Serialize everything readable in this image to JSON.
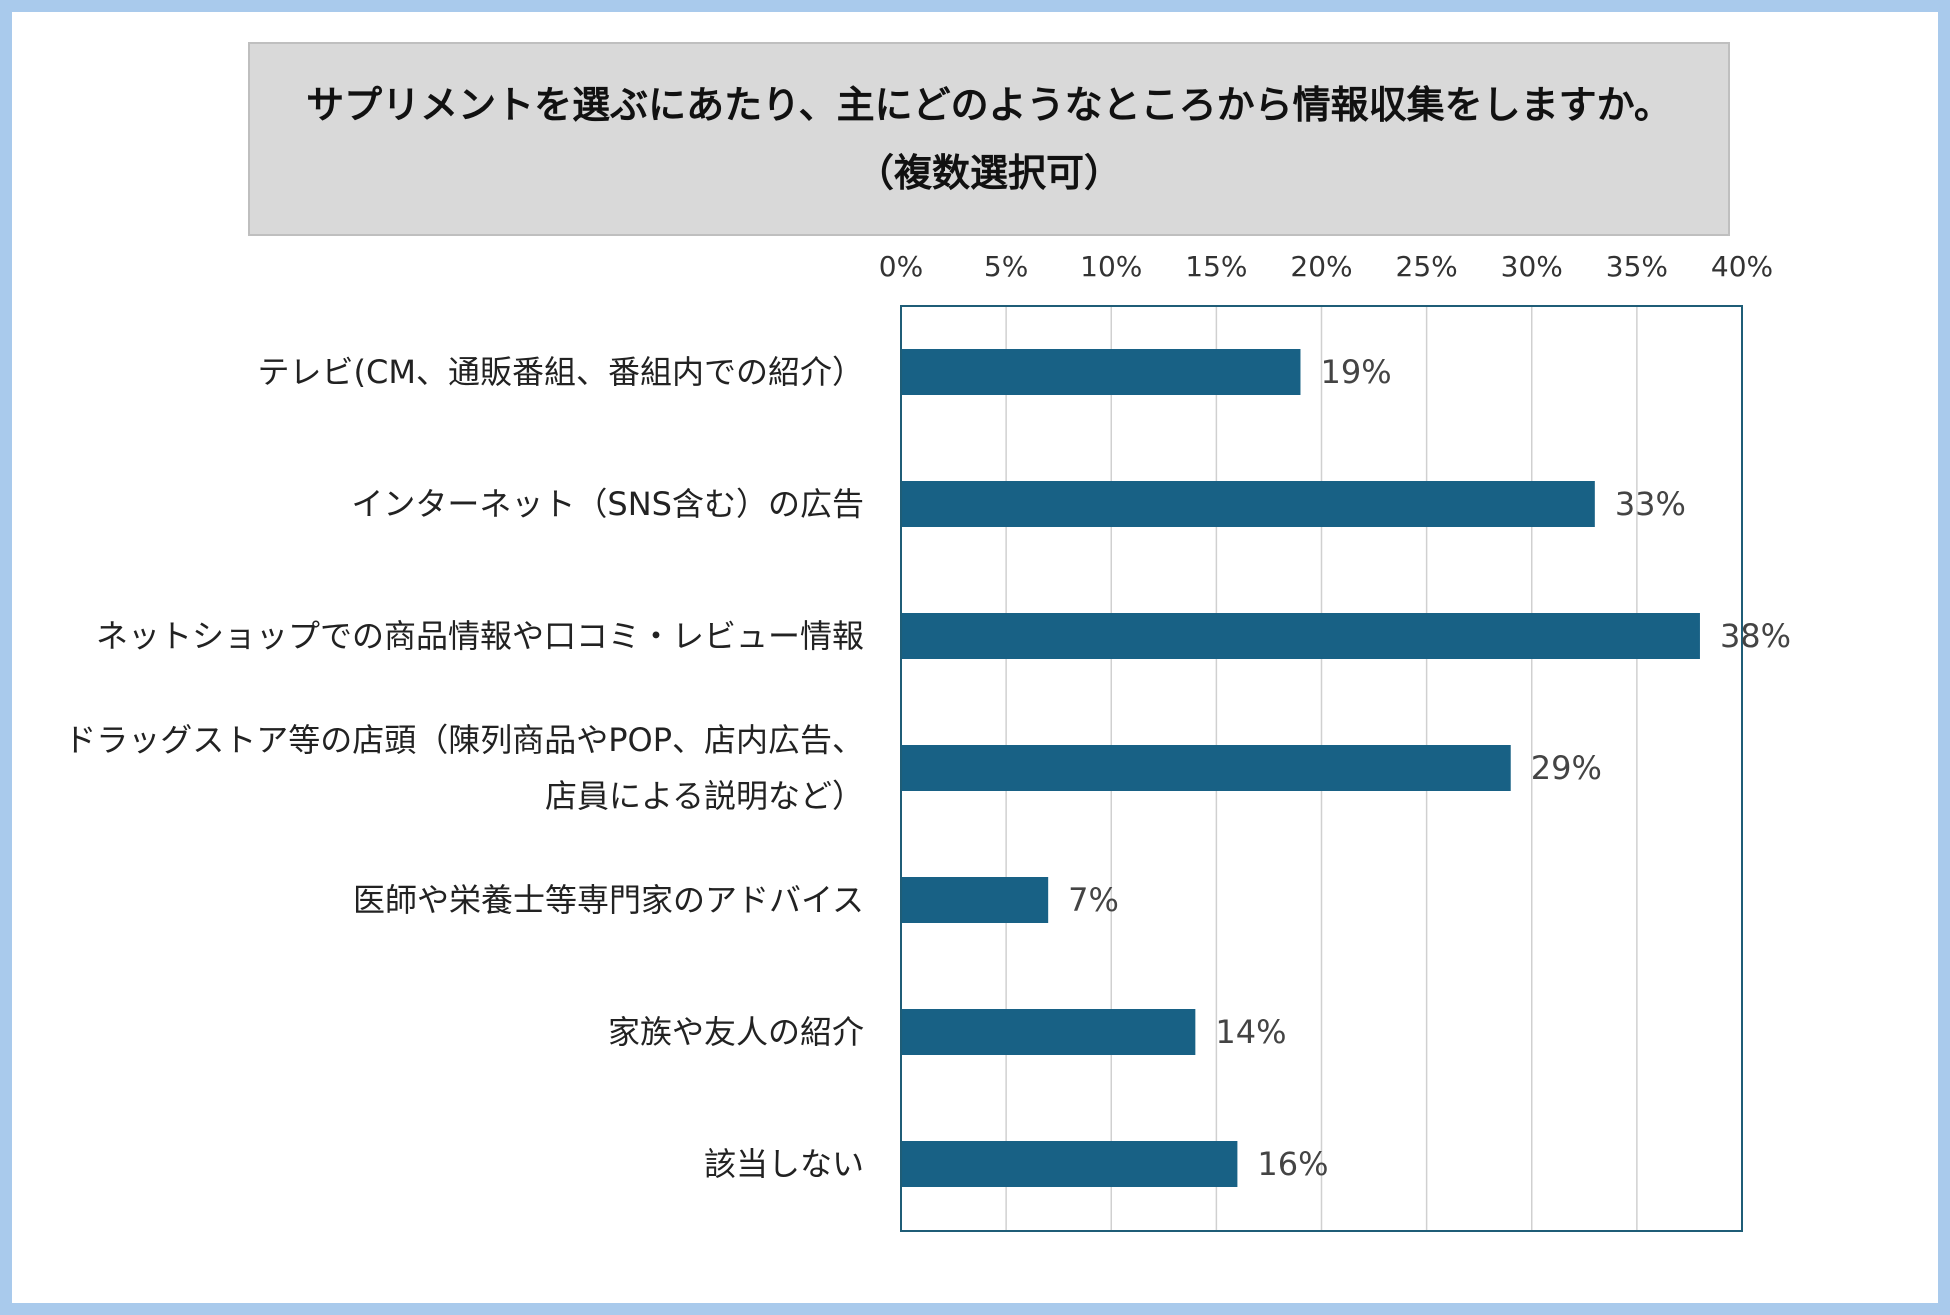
{
  "chart_data": {
    "type": "bar",
    "orientation": "horizontal",
    "title": "サプリメントを選ぶにあたり、主にどのようなところから情報収集をしますか。",
    "subtitle": "（複数選択可）",
    "categories": [
      [
        "テレビ(CM、通販番組、番組内での紹介）"
      ],
      [
        "インターネット（SNS含む）の広告"
      ],
      [
        "ネットショップでの商品情報や口コミ・レビュー情報"
      ],
      [
        "ドラッグストア等の店頭（陳列商品やPOP、店内広告、",
        "店員による説明など）"
      ],
      [
        "医師や栄養士等専門家のアドバイス"
      ],
      [
        "家族や友人の紹介"
      ],
      [
        "該当しない"
      ]
    ],
    "values": [
      19,
      33,
      38,
      29,
      7,
      14,
      16
    ],
    "data_labels": [
      "19%",
      "33%",
      "38%",
      "29%",
      "7%",
      "14%",
      "16%"
    ],
    "xlim": [
      0,
      40
    ],
    "xticks": [
      0,
      5,
      10,
      15,
      20,
      25,
      30,
      35,
      40
    ],
    "xtick_labels": [
      "0%",
      "5%",
      "10%",
      "15%",
      "20%",
      "25%",
      "30%",
      "35%",
      "40%"
    ],
    "xaxis_position": "top",
    "grid": true,
    "bar_color": "#186185",
    "frame_color": "#1f5d77"
  }
}
